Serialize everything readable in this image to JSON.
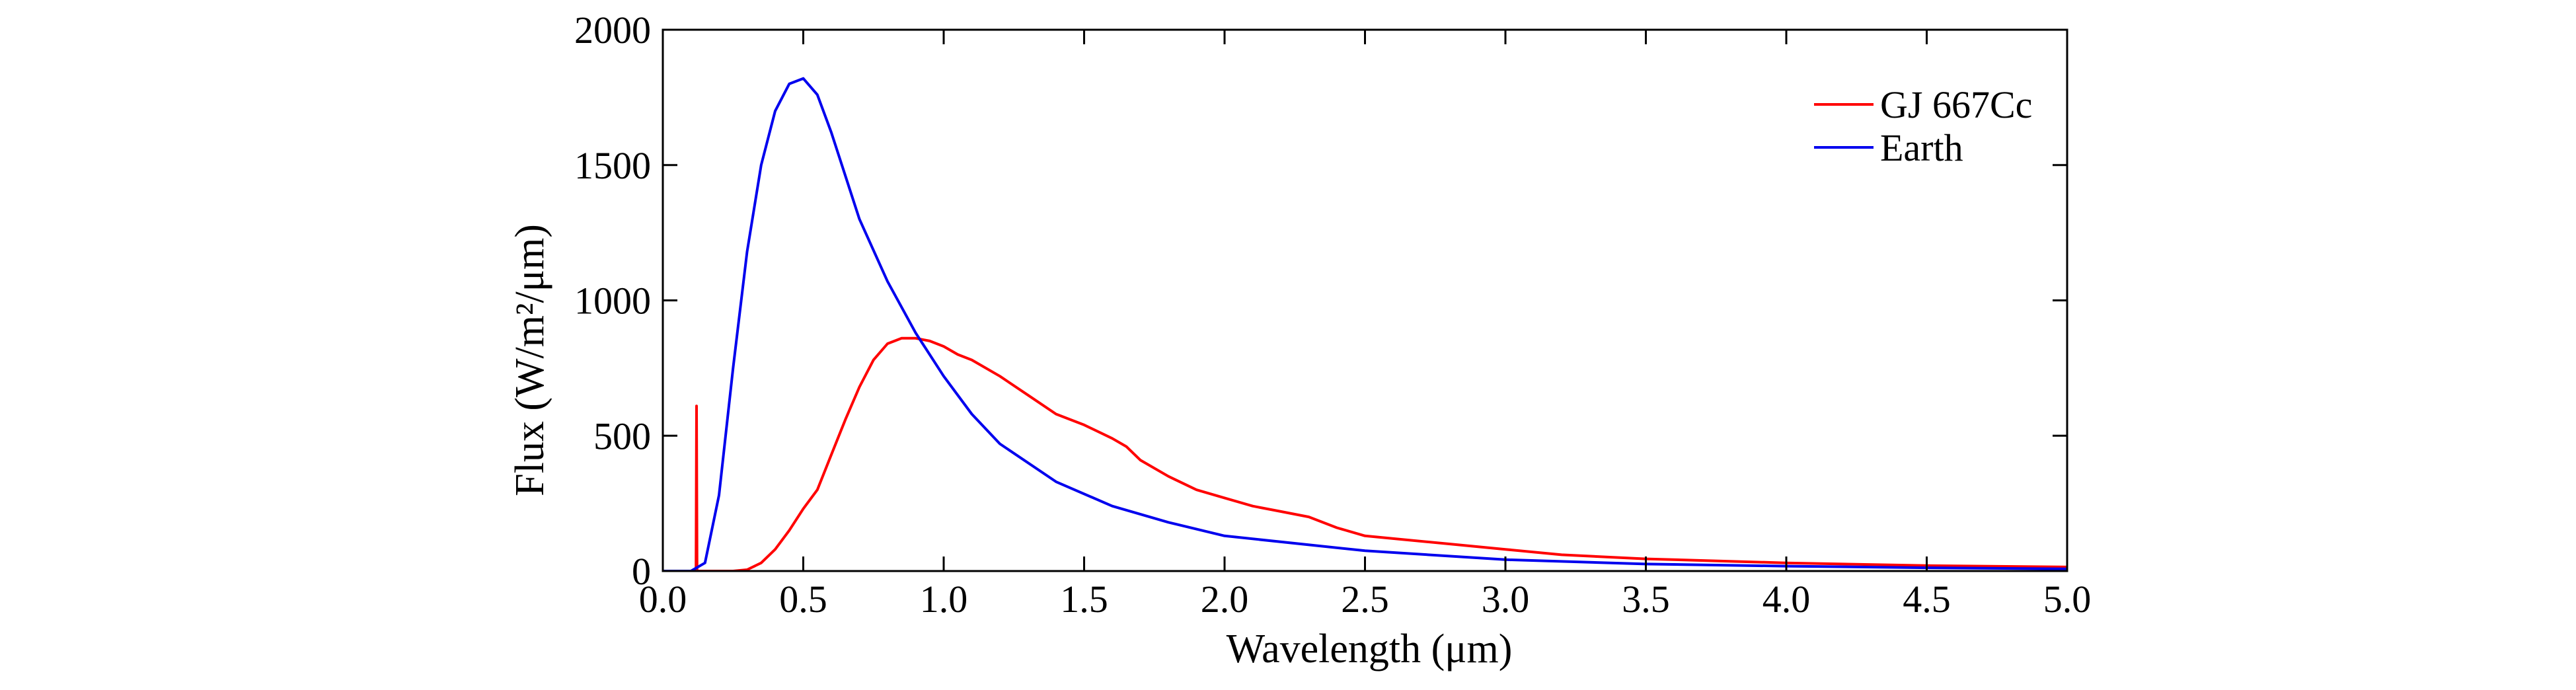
{
  "chart_data": {
    "type": "line",
    "title": "",
    "xlabel": "Wavelength (μm)",
    "ylabel": "Flux (W/m²/μm)",
    "xlim": [
      0,
      5
    ],
    "ylim": [
      0,
      2000
    ],
    "xticks": [
      "0.0",
      "0.5",
      "1.0",
      "1.5",
      "2.0",
      "2.5",
      "3.0",
      "3.5",
      "4.0",
      "4.5",
      "5.0"
    ],
    "yticks": [
      "0",
      "500",
      "1000",
      "1500",
      "2000"
    ],
    "grid": false,
    "legend_position": "top-right",
    "series": [
      {
        "name": "GJ 667Cc",
        "color": "#ff0000",
        "x": [
          0.0,
          0.1,
          0.118,
          0.12,
          0.122,
          0.13,
          0.2,
          0.25,
          0.3,
          0.35,
          0.4,
          0.45,
          0.5,
          0.55,
          0.6,
          0.65,
          0.7,
          0.75,
          0.8,
          0.85,
          0.9,
          0.95,
          1.0,
          1.05,
          1.1,
          1.2,
          1.3,
          1.4,
          1.5,
          1.6,
          1.65,
          1.7,
          1.8,
          1.9,
          2.0,
          2.1,
          2.2,
          2.3,
          2.4,
          2.5,
          2.6,
          2.8,
          3.0,
          3.2,
          3.5,
          4.0,
          4.5,
          5.0
        ],
        "y": [
          0,
          0,
          0,
          610,
          0,
          0,
          0,
          0,
          5,
          30,
          80,
          150,
          230,
          300,
          430,
          560,
          680,
          780,
          840,
          860,
          860,
          850,
          830,
          800,
          780,
          720,
          650,
          580,
          540,
          490,
          460,
          410,
          350,
          300,
          270,
          240,
          220,
          200,
          160,
          130,
          120,
          100,
          80,
          60,
          45,
          30,
          20,
          15
        ]
      },
      {
        "name": "Earth",
        "color": "#0000ee",
        "x": [
          0.0,
          0.1,
          0.15,
          0.2,
          0.25,
          0.3,
          0.35,
          0.4,
          0.45,
          0.5,
          0.55,
          0.6,
          0.7,
          0.8,
          0.9,
          1.0,
          1.1,
          1.2,
          1.4,
          1.6,
          1.8,
          2.0,
          2.5,
          3.0,
          3.5,
          4.0,
          4.5,
          5.0
        ],
        "y": [
          0,
          0,
          30,
          280,
          750,
          1180,
          1500,
          1700,
          1800,
          1820,
          1760,
          1620,
          1300,
          1070,
          880,
          720,
          580,
          470,
          330,
          240,
          180,
          130,
          75,
          42,
          26,
          18,
          12,
          8
        ]
      }
    ]
  }
}
